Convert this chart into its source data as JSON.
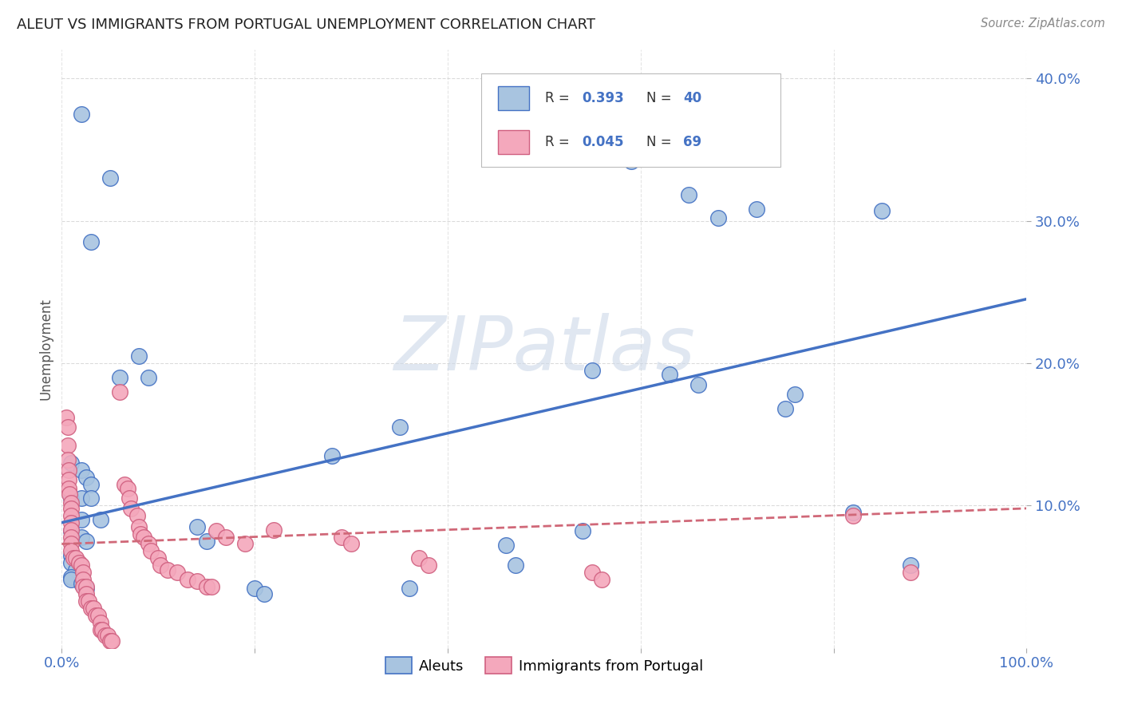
{
  "title": "ALEUT VS IMMIGRANTS FROM PORTUGAL UNEMPLOYMENT CORRELATION CHART",
  "source": "Source: ZipAtlas.com",
  "ylabel": "Unemployment",
  "aleut_color": "#a8c4e0",
  "portugal_color": "#f4a8bc",
  "aleut_edge_color": "#4472c4",
  "portugal_edge_color": "#d06080",
  "aleut_line_color": "#4472c4",
  "portugal_line_color": "#d06878",
  "axis_label_color": "#4472c4",
  "title_color": "#222222",
  "source_color": "#888888",
  "grid_color": "#cccccc",
  "background_color": "#ffffff",
  "watermark_text": "ZIPatlas",
  "watermark_color": "#ccd8e8",
  "aleut_points": [
    [
      0.02,
      0.375
    ],
    [
      0.03,
      0.285
    ],
    [
      0.05,
      0.33
    ],
    [
      0.08,
      0.205
    ],
    [
      0.09,
      0.19
    ],
    [
      0.06,
      0.19
    ],
    [
      0.01,
      0.13
    ],
    [
      0.02,
      0.125
    ],
    [
      0.025,
      0.12
    ],
    [
      0.03,
      0.115
    ],
    [
      0.01,
      0.105
    ],
    [
      0.02,
      0.105
    ],
    [
      0.03,
      0.105
    ],
    [
      0.04,
      0.09
    ],
    [
      0.02,
      0.09
    ],
    [
      0.01,
      0.082
    ],
    [
      0.02,
      0.078
    ],
    [
      0.025,
      0.075
    ],
    [
      0.01,
      0.065
    ],
    [
      0.01,
      0.06
    ],
    [
      0.015,
      0.055
    ],
    [
      0.01,
      0.05
    ],
    [
      0.01,
      0.048
    ],
    [
      0.02,
      0.045
    ],
    [
      0.025,
      0.042
    ],
    [
      0.14,
      0.085
    ],
    [
      0.15,
      0.075
    ],
    [
      0.2,
      0.042
    ],
    [
      0.21,
      0.038
    ],
    [
      0.28,
      0.135
    ],
    [
      0.35,
      0.155
    ],
    [
      0.36,
      0.042
    ],
    [
      0.46,
      0.072
    ],
    [
      0.47,
      0.058
    ],
    [
      0.54,
      0.082
    ],
    [
      0.55,
      0.195
    ],
    [
      0.63,
      0.192
    ],
    [
      0.66,
      0.185
    ],
    [
      0.75,
      0.168
    ],
    [
      0.76,
      0.178
    ],
    [
      0.82,
      0.095
    ],
    [
      0.88,
      0.058
    ],
    [
      0.68,
      0.302
    ],
    [
      0.72,
      0.308
    ],
    [
      0.85,
      0.307
    ],
    [
      0.65,
      0.318
    ],
    [
      0.59,
      0.342
    ]
  ],
  "portugal_points": [
    [
      0.005,
      0.162
    ],
    [
      0.006,
      0.155
    ],
    [
      0.006,
      0.142
    ],
    [
      0.006,
      0.132
    ],
    [
      0.007,
      0.125
    ],
    [
      0.007,
      0.118
    ],
    [
      0.007,
      0.112
    ],
    [
      0.008,
      0.108
    ],
    [
      0.01,
      0.102
    ],
    [
      0.01,
      0.098
    ],
    [
      0.01,
      0.093
    ],
    [
      0.01,
      0.088
    ],
    [
      0.01,
      0.083
    ],
    [
      0.01,
      0.078
    ],
    [
      0.01,
      0.073
    ],
    [
      0.01,
      0.068
    ],
    [
      0.012,
      0.063
    ],
    [
      0.015,
      0.063
    ],
    [
      0.018,
      0.06
    ],
    [
      0.02,
      0.058
    ],
    [
      0.022,
      0.053
    ],
    [
      0.022,
      0.048
    ],
    [
      0.022,
      0.043
    ],
    [
      0.025,
      0.043
    ],
    [
      0.025,
      0.038
    ],
    [
      0.025,
      0.033
    ],
    [
      0.028,
      0.033
    ],
    [
      0.03,
      0.028
    ],
    [
      0.033,
      0.028
    ],
    [
      0.035,
      0.023
    ],
    [
      0.038,
      0.023
    ],
    [
      0.04,
      0.018
    ],
    [
      0.04,
      0.013
    ],
    [
      0.042,
      0.013
    ],
    [
      0.045,
      0.009
    ],
    [
      0.048,
      0.009
    ],
    [
      0.05,
      0.005
    ],
    [
      0.052,
      0.005
    ],
    [
      0.06,
      0.18
    ],
    [
      0.065,
      0.115
    ],
    [
      0.068,
      0.112
    ],
    [
      0.07,
      0.105
    ],
    [
      0.072,
      0.098
    ],
    [
      0.078,
      0.093
    ],
    [
      0.08,
      0.085
    ],
    [
      0.082,
      0.08
    ],
    [
      0.085,
      0.078
    ],
    [
      0.09,
      0.073
    ],
    [
      0.092,
      0.068
    ],
    [
      0.1,
      0.063
    ],
    [
      0.102,
      0.058
    ],
    [
      0.11,
      0.055
    ],
    [
      0.12,
      0.053
    ],
    [
      0.13,
      0.048
    ],
    [
      0.14,
      0.047
    ],
    [
      0.15,
      0.043
    ],
    [
      0.155,
      0.043
    ],
    [
      0.16,
      0.082
    ],
    [
      0.17,
      0.078
    ],
    [
      0.19,
      0.073
    ],
    [
      0.22,
      0.083
    ],
    [
      0.29,
      0.078
    ],
    [
      0.3,
      0.073
    ],
    [
      0.37,
      0.063
    ],
    [
      0.38,
      0.058
    ],
    [
      0.55,
      0.053
    ],
    [
      0.56,
      0.048
    ],
    [
      0.82,
      0.093
    ],
    [
      0.88,
      0.053
    ]
  ],
  "aleut_trend_x": [
    0.0,
    1.0
  ],
  "aleut_trend_y": [
    0.088,
    0.245
  ],
  "portugal_trend_x": [
    0.0,
    1.0
  ],
  "portugal_trend_y": [
    0.073,
    0.098
  ],
  "xlim": [
    0.0,
    1.0
  ],
  "ylim": [
    0.0,
    0.42
  ],
  "xtick_positions": [
    0.0,
    0.2,
    0.4,
    0.6,
    0.8,
    1.0
  ],
  "xtick_labels": [
    "0.0%",
    "",
    "",
    "",
    "",
    "100.0%"
  ],
  "ytick_positions": [
    0.1,
    0.2,
    0.3,
    0.4
  ],
  "ytick_labels": [
    "10.0%",
    "20.0%",
    "30.0%",
    "40.0%"
  ]
}
